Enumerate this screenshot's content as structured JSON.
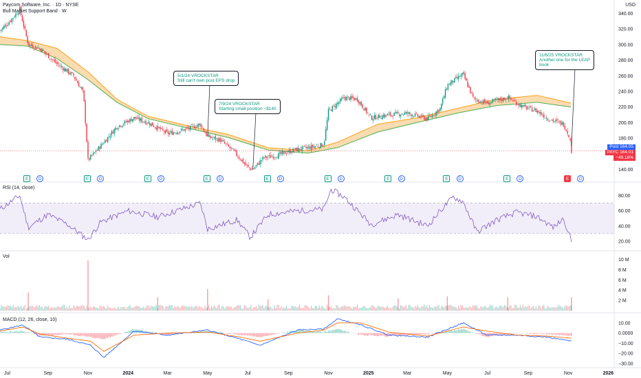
{
  "header": {
    "title": "Paycom Software, Inc. · 1D · NYSE",
    "indicator": "Bull Market Support Band · W",
    "currency": "USD"
  },
  "panes": {
    "rsi_label": "RSI (14, close)",
    "vol_label": "Vol",
    "macd_label": "MACD (12, 26, close, 10)"
  },
  "price_tags": {
    "post_label": "Post",
    "post_value": "164.05",
    "payc_label": "PAYC",
    "payc_value": "164.01",
    "change": "−49.18%"
  },
  "annotations": [
    {
      "line1": "5/1/24 VROCKSTAR",
      "line2": "Still can't own post EPS drop"
    },
    {
      "line1": "7/9/24 VROCKSTAR",
      "line2": "Starting small position ~$140"
    },
    {
      "line1": "11/6/25 VROCKSTAR",
      "line2": "Another one for the LEAP",
      "line3": "book"
    }
  ],
  "events": [
    {
      "type": "E",
      "x": "2023-07-31"
    },
    {
      "type": "D",
      "x": "2023-08-20"
    },
    {
      "type": "E",
      "x": "2023-10-31"
    },
    {
      "type": "D",
      "x": "2023-11-20"
    },
    {
      "type": "E",
      "x": "2024-01-31"
    },
    {
      "type": "D",
      "x": "2024-02-20"
    },
    {
      "type": "E",
      "x": "2024-04-30"
    },
    {
      "type": "D",
      "x": "2024-05-20"
    },
    {
      "type": "E",
      "x": "2024-07-31"
    },
    {
      "type": "D",
      "x": "2024-08-20"
    },
    {
      "type": "E",
      "x": "2024-10-31"
    },
    {
      "type": "D",
      "x": "2024-11-20"
    },
    {
      "type": "E",
      "x": "2025-01-31"
    },
    {
      "type": "D",
      "x": "2025-02-20"
    },
    {
      "type": "E",
      "x": "2025-04-30"
    },
    {
      "type": "D",
      "x": "2025-05-20"
    },
    {
      "type": "E",
      "x": "2025-07-31"
    },
    {
      "type": "D",
      "x": "2025-08-20"
    },
    {
      "type": "E",
      "x": "2025-10-31",
      "highlight": true
    },
    {
      "type": "D",
      "x": "2025-11-20"
    }
  ],
  "colors": {
    "up": "#089981",
    "down": "#f23645",
    "band_fill": "#f9cf95",
    "band_line_a": "#f7a21b",
    "band_line_b": "#4caf50",
    "rsi": "#7e57c2",
    "macd": "#2962ff",
    "signal": "#ff6d00",
    "last_price": "#f23645"
  },
  "chart_data": [
    {
      "type": "candlestick",
      "name": "price",
      "ylim": [
        130,
        350
      ],
      "y_ticks": [
        "140.00",
        "160.00",
        "180.00",
        "200.00",
        "220.00",
        "240.00",
        "260.00",
        "280.00",
        "300.00",
        "320.00",
        "340.00"
      ],
      "x_ticks": [
        "Jul",
        "Sep",
        "Nov",
        "2024",
        "Mar",
        "May",
        "Jul",
        "Sep",
        "Nov",
        "2025",
        "Mar",
        "May",
        "Jul",
        "Sep",
        "Nov",
        "2026"
      ],
      "x_tick_dates": [
        "2023-07-01",
        "2023-09-01",
        "2023-11-01",
        "2024-01-01",
        "2024-03-01",
        "2024-05-01",
        "2024-07-01",
        "2024-09-01",
        "2024-11-01",
        "2025-01-01",
        "2025-03-01",
        "2025-05-01",
        "2025-07-01",
        "2025-09-01",
        "2025-11-01",
        "2026-01-01"
      ],
      "x_range": [
        "2023-06-20",
        "2026-01-10"
      ],
      "close_path": [
        [
          "2023-06-20",
          318
        ],
        [
          "2023-07-05",
          330
        ],
        [
          "2023-07-20",
          345
        ],
        [
          "2023-08-02",
          300
        ],
        [
          "2023-08-20",
          295
        ],
        [
          "2023-09-15",
          275
        ],
        [
          "2023-10-10",
          260
        ],
        [
          "2023-10-25",
          238
        ],
        [
          "2023-11-01",
          152
        ],
        [
          "2023-11-20",
          170
        ],
        [
          "2023-12-15",
          195
        ],
        [
          "2024-01-10",
          206
        ],
        [
          "2024-02-01",
          200
        ],
        [
          "2024-03-01",
          186
        ],
        [
          "2024-04-01",
          192
        ],
        [
          "2024-04-20",
          198
        ],
        [
          "2024-05-01",
          182
        ],
        [
          "2024-05-20",
          178
        ],
        [
          "2024-06-10",
          163
        ],
        [
          "2024-07-01",
          143
        ],
        [
          "2024-07-09",
          140
        ],
        [
          "2024-07-25",
          155
        ],
        [
          "2024-08-15",
          158
        ],
        [
          "2024-09-10",
          165
        ],
        [
          "2024-10-01",
          168
        ],
        [
          "2024-10-25",
          172
        ],
        [
          "2024-11-01",
          215
        ],
        [
          "2024-11-25",
          232
        ],
        [
          "2024-12-15",
          230
        ],
        [
          "2025-01-05",
          206
        ],
        [
          "2025-02-01",
          210
        ],
        [
          "2025-03-01",
          212
        ],
        [
          "2025-04-01",
          205
        ],
        [
          "2025-04-20",
          218
        ],
        [
          "2025-05-01",
          248
        ],
        [
          "2025-05-25",
          262
        ],
        [
          "2025-06-10",
          230
        ],
        [
          "2025-07-01",
          225
        ],
        [
          "2025-08-01",
          232
        ],
        [
          "2025-08-25",
          220
        ],
        [
          "2025-09-15",
          215
        ],
        [
          "2025-10-01",
          205
        ],
        [
          "2025-10-25",
          198
        ],
        [
          "2025-11-03",
          182
        ],
        [
          "2025-11-06",
          164
        ]
      ],
      "band_upper": [
        [
          "2023-06-20",
          310
        ],
        [
          "2023-08-01",
          305
        ],
        [
          "2023-09-15",
          295
        ],
        [
          "2023-11-01",
          265
        ],
        [
          "2023-12-15",
          230
        ],
        [
          "2024-02-01",
          208
        ],
        [
          "2024-04-01",
          196
        ],
        [
          "2024-06-01",
          185
        ],
        [
          "2024-08-01",
          168
        ],
        [
          "2024-10-01",
          164
        ],
        [
          "2024-11-15",
          175
        ],
        [
          "2025-01-15",
          198
        ],
        [
          "2025-03-15",
          206
        ],
        [
          "2025-05-15",
          218
        ],
        [
          "2025-07-15",
          230
        ],
        [
          "2025-09-15",
          235
        ],
        [
          "2025-11-05",
          225
        ]
      ],
      "band_lower": [
        [
          "2023-06-20",
          300
        ],
        [
          "2023-08-01",
          298
        ],
        [
          "2023-09-15",
          282
        ],
        [
          "2023-11-01",
          255
        ],
        [
          "2023-12-15",
          226
        ],
        [
          "2024-02-01",
          205
        ],
        [
          "2024-04-01",
          193
        ],
        [
          "2024-06-01",
          181
        ],
        [
          "2024-08-01",
          165
        ],
        [
          "2024-10-01",
          161
        ],
        [
          "2024-11-15",
          168
        ],
        [
          "2025-01-15",
          188
        ],
        [
          "2025-03-15",
          200
        ],
        [
          "2025-05-15",
          212
        ],
        [
          "2025-07-15",
          222
        ],
        [
          "2025-09-15",
          226
        ],
        [
          "2025-11-05",
          220
        ]
      ],
      "last_price": 164.01
    },
    {
      "type": "line",
      "name": "RSI (14, close)",
      "ylim": [
        10,
        95
      ],
      "y_ticks": [
        "20.00",
        "40.00",
        "60.00",
        "80.00"
      ],
      "bands": [
        30,
        70
      ],
      "x": [
        "2023-06-20",
        "2023-07-20",
        "2023-08-02",
        "2023-09-01",
        "2023-10-01",
        "2023-11-01",
        "2023-11-20",
        "2024-01-01",
        "2024-02-15",
        "2024-04-20",
        "2024-05-01",
        "2024-06-15",
        "2024-07-05",
        "2024-08-01",
        "2024-09-15",
        "2024-10-25",
        "2024-11-05",
        "2024-11-25",
        "2025-01-05",
        "2025-02-15",
        "2025-04-01",
        "2025-04-20",
        "2025-05-10",
        "2025-05-25",
        "2025-06-15",
        "2025-07-15",
        "2025-08-15",
        "2025-09-15",
        "2025-10-10",
        "2025-10-25",
        "2025-11-06"
      ],
      "values": [
        62,
        80,
        38,
        55,
        42,
        22,
        45,
        60,
        52,
        70,
        36,
        48,
        25,
        55,
        60,
        62,
        88,
        78,
        42,
        55,
        40,
        60,
        78,
        72,
        32,
        48,
        58,
        52,
        38,
        50,
        20
      ]
    },
    {
      "type": "bar",
      "name": "Vol",
      "ylim": [
        0,
        11
      ],
      "y_ticks": [
        "2 M",
        "4 M",
        "6 M",
        "8 M",
        "10 M"
      ],
      "spikes": [
        [
          "2023-08-02",
          3.5
        ],
        [
          "2023-11-01",
          9.8
        ],
        [
          "2024-02-15",
          2.6
        ],
        [
          "2024-05-01",
          4.2
        ],
        [
          "2024-08-01",
          2.2
        ],
        [
          "2024-11-01",
          3.0
        ],
        [
          "2025-02-15",
          2.4
        ],
        [
          "2025-05-01",
          2.8
        ],
        [
          "2025-08-01",
          2.6
        ],
        [
          "2025-11-06",
          2.6
        ]
      ],
      "baseline": 0.9
    },
    {
      "type": "line",
      "name": "MACD (12, 26, close, 10)",
      "ylim": [
        -32,
        18
      ],
      "y_ticks": [
        "10.00",
        "0.0000",
        "−10.00",
        "−20.00",
        "−30.00"
      ],
      "x": [
        "2023-06-20",
        "2023-07-25",
        "2023-08-20",
        "2023-10-01",
        "2023-11-05",
        "2023-11-25",
        "2024-01-10",
        "2024-03-01",
        "2024-05-01",
        "2024-06-20",
        "2024-07-20",
        "2024-09-15",
        "2024-10-25",
        "2024-11-15",
        "2024-12-20",
        "2025-02-01",
        "2025-04-01",
        "2025-05-25",
        "2025-06-30",
        "2025-08-15",
        "2025-10-01",
        "2025-11-06"
      ],
      "macd": [
        3,
        8,
        -4,
        -6,
        -12,
        -24,
        2,
        -2,
        3,
        -6,
        -12,
        3,
        4,
        14,
        8,
        -2,
        -4,
        10,
        -2,
        -2,
        -4,
        -8
      ],
      "signal": [
        2,
        6,
        -1,
        -5,
        -8,
        -18,
        -2,
        0,
        1,
        -4,
        -8,
        0,
        3,
        10,
        10,
        1,
        -3,
        6,
        2,
        -2,
        -3,
        -5
      ]
    }
  ]
}
